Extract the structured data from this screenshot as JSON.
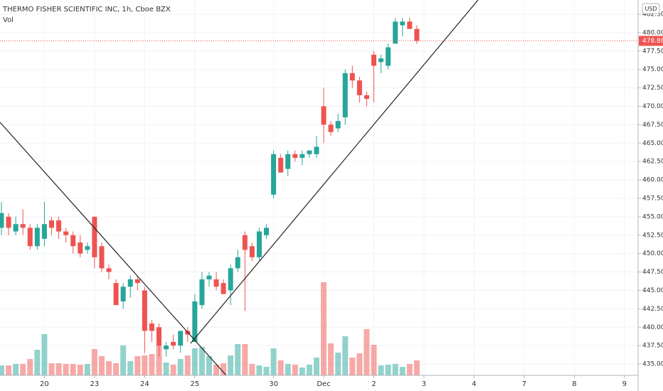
{
  "chart_data": {
    "type": "candlestick",
    "title": "THERMO FISHER SCIENTIFIC INC, 1h, Cboe BZX",
    "volume_label": "Vol",
    "currency": "USD",
    "up_color": "#26a69a",
    "down_color": "#ef5350",
    "grid": true,
    "xlim": [
      -0.2,
      88.9
    ],
    "xticks": [
      {
        "value": 6,
        "label": "20"
      },
      {
        "value": 13,
        "label": "23"
      },
      {
        "value": 20,
        "label": "24"
      },
      {
        "value": 27,
        "label": "25"
      },
      {
        "value": 38,
        "label": "30"
      },
      {
        "value": 45,
        "label": "Dec"
      },
      {
        "value": 52,
        "label": "2"
      },
      {
        "value": 59,
        "label": "3"
      },
      {
        "value": 66,
        "label": "4"
      },
      {
        "value": 73,
        "label": "7"
      },
      {
        "value": 80,
        "label": "8"
      },
      {
        "value": 87,
        "label": "9"
      }
    ],
    "ylim": [
      433.46,
      484.43
    ],
    "yticks": [
      {
        "value": 435,
        "label": "435.00"
      },
      {
        "value": 437.5,
        "label": "437.50"
      },
      {
        "value": 440,
        "label": "440.00"
      },
      {
        "value": 442.5,
        "label": "442.50"
      },
      {
        "value": 445,
        "label": "445.00"
      },
      {
        "value": 447.5,
        "label": "447.50"
      },
      {
        "value": 450,
        "label": "450.00"
      },
      {
        "value": 452.5,
        "label": "452.50"
      },
      {
        "value": 455,
        "label": "455.00"
      },
      {
        "value": 457.5,
        "label": "457.50"
      },
      {
        "value": 460,
        "label": "460.00"
      },
      {
        "value": 462.5,
        "label": "462.50"
      },
      {
        "value": 465,
        "label": "465.00"
      },
      {
        "value": 467.5,
        "label": "467.50"
      },
      {
        "value": 470,
        "label": "470.00"
      },
      {
        "value": 472.5,
        "label": "472.50"
      },
      {
        "value": 475,
        "label": "475.00"
      },
      {
        "value": 477.5,
        "label": "477.50"
      },
      {
        "value": 480,
        "label": "480.00"
      },
      {
        "value": 482.5,
        "label": "482.50"
      }
    ],
    "open": [
      453.5,
      455,
      453,
      454,
      453.5,
      451,
      452,
      454.5,
      454.5,
      453,
      452.5,
      451.5,
      450.5,
      455,
      451,
      448,
      446,
      443.5,
      445.5,
      446.5,
      445,
      440.5,
      440,
      437,
      438,
      437.5,
      439.5,
      438,
      443,
      446.5,
      446.5,
      446,
      445,
      448,
      452.5,
      451,
      449.5,
      452.5,
      458,
      463,
      461.5,
      463.5,
      463,
      463.5,
      463.5,
      470,
      467.5,
      467,
      468.5,
      474.5,
      473.5,
      471.5,
      477,
      476,
      475.5,
      478.5,
      481,
      481.5,
      480.5
    ],
    "high": [
      457,
      455.5,
      455,
      456,
      454,
      454,
      457,
      455,
      455,
      453.5,
      453,
      452.5,
      451.5,
      455,
      451.5,
      448.5,
      446.5,
      446,
      447,
      447,
      445.5,
      441,
      440.5,
      438,
      439,
      439.5,
      440,
      444.5,
      447.5,
      447.5,
      447.5,
      446.5,
      448.5,
      450.5,
      453,
      451.5,
      453.5,
      454,
      464,
      463.5,
      464,
      464,
      464,
      464,
      466,
      472.5,
      468,
      469,
      475,
      475.5,
      474,
      472,
      477.5,
      477,
      478.5,
      482,
      482,
      482,
      481
    ],
    "low": [
      452.5,
      452.5,
      452.5,
      452.5,
      450.5,
      450.5,
      451,
      452.5,
      452,
      451.5,
      450,
      449.5,
      450,
      448,
      447.5,
      446.5,
      443,
      442.5,
      444,
      445,
      436.5,
      438,
      436,
      436,
      437,
      436.5,
      438,
      438,
      442.5,
      445.5,
      445,
      444.5,
      443,
      447.5,
      442.2,
      449,
      449,
      452,
      457.5,
      461,
      460.5,
      462.5,
      462,
      463,
      463,
      465,
      466,
      466.5,
      467.5,
      472.5,
      470.5,
      470,
      470.5,
      474.5,
      475,
      478.5,
      479.5,
      480.5,
      478.5
    ],
    "close": [
      455.5,
      453.5,
      454,
      453.5,
      451,
      453.5,
      454,
      453.5,
      453,
      452.5,
      451,
      450,
      451,
      449.5,
      448,
      447.5,
      443,
      445.5,
      446.5,
      446,
      439.5,
      439.5,
      437.5,
      437.5,
      437.5,
      439.5,
      439,
      443.5,
      446.5,
      447,
      445.5,
      444.5,
      448,
      449.5,
      450.5,
      449.5,
      453,
      453.5,
      463.5,
      461,
      463.5,
      463,
      463.5,
      464,
      464.5,
      467.5,
      466.5,
      468,
      474.5,
      473.5,
      471.5,
      471,
      475.5,
      476.5,
      478,
      481.5,
      481.5,
      480.5,
      478.88
    ],
    "volume_ylim": [
      0,
      528
    ],
    "volume": [
      14,
      14,
      16,
      16,
      23,
      36,
      58,
      17,
      17,
      16,
      16,
      15,
      16,
      37,
      27,
      20,
      17,
      42,
      20,
      27,
      28,
      30,
      42,
      18,
      15,
      23,
      28,
      38,
      40,
      27,
      15,
      17,
      28,
      44,
      44,
      16,
      14,
      12,
      38,
      21,
      16,
      15,
      11,
      15,
      25,
      131,
      45,
      32,
      55,
      25,
      31,
      65,
      43,
      14,
      15,
      16,
      12,
      16,
      21
    ]
  }
}
